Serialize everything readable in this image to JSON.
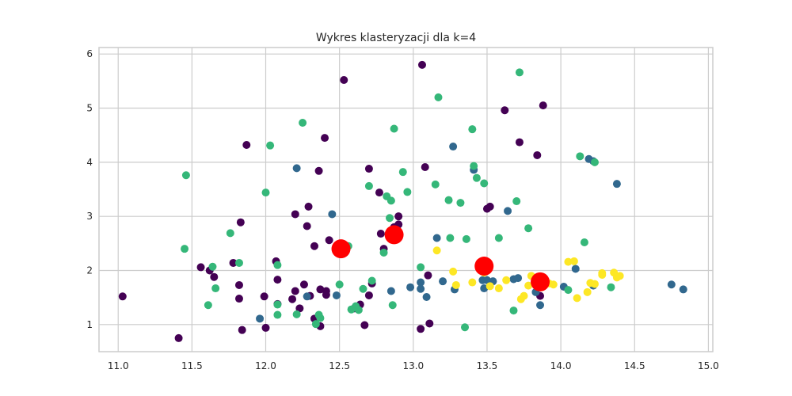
{
  "chart_data": {
    "type": "scatter",
    "title": "Wykres klasteryzacji dla k=4",
    "xlabel": "",
    "ylabel": "",
    "xlim": [
      10.87,
      15.03
    ],
    "ylim": [
      0.5,
      6.12
    ],
    "grid": true,
    "legend": "none",
    "x_ticks": [
      "11.0",
      "11.5",
      "12.0",
      "12.5",
      "13.0",
      "13.5",
      "14.0",
      "14.5",
      "15.0"
    ],
    "x_tick_values": [
      11.0,
      11.5,
      12.0,
      12.5,
      13.0,
      13.5,
      14.0,
      14.5,
      15.0
    ],
    "y_ticks": [
      "1",
      "2",
      "3",
      "4",
      "5",
      "6"
    ],
    "y_tick_values": [
      1,
      2,
      3,
      4,
      5,
      6
    ],
    "colors": {
      "cluster_0": "#440154",
      "cluster_1": "#31688e",
      "cluster_2": "#35b779",
      "cluster_3": "#fde725",
      "centroid": "#ff0000"
    },
    "series": [
      {
        "color_key": "cluster_0",
        "x": [
          11.03,
          11.41,
          11.56,
          11.62,
          11.65,
          11.78,
          11.82,
          11.82,
          11.83,
          11.84,
          11.87,
          11.99,
          12.0,
          12.07,
          12.08,
          12.08,
          12.2,
          12.18,
          12.2,
          12.23,
          12.26,
          12.28,
          12.29,
          12.3,
          12.33,
          12.33,
          12.36,
          12.37,
          12.37,
          12.4,
          12.41,
          12.43,
          12.41,
          12.53,
          12.6,
          12.64,
          12.67,
          12.7,
          12.7,
          12.72,
          12.77,
          12.78,
          12.8,
          12.87,
          12.9,
          12.9,
          13.05,
          13.06,
          13.08,
          13.1,
          13.11,
          13.5,
          13.52,
          13.62,
          13.72,
          13.84,
          13.86,
          13.86,
          13.88
        ],
        "y": [
          1.52,
          0.75,
          2.06,
          2.0,
          1.88,
          2.14,
          1.73,
          1.48,
          2.89,
          0.9,
          4.32,
          1.52,
          0.94,
          2.17,
          1.38,
          1.83,
          3.04,
          1.47,
          1.62,
          1.3,
          1.74,
          2.82,
          3.18,
          1.53,
          1.11,
          2.45,
          3.84,
          0.97,
          1.65,
          4.45,
          1.62,
          2.56,
          1.55,
          5.52,
          1.3,
          1.37,
          0.99,
          3.88,
          1.54,
          1.76,
          3.44,
          2.68,
          2.4,
          2.8,
          3.0,
          2.85,
          0.92,
          5.8,
          3.91,
          1.91,
          1.02,
          3.14,
          3.18,
          4.96,
          4.37,
          4.13,
          1.53,
          1.86,
          5.05
        ]
      },
      {
        "color_key": "cluster_1",
        "x": [
          11.96,
          12.21,
          12.28,
          12.45,
          12.48,
          12.85,
          12.98,
          13.05,
          13.05,
          13.09,
          13.16,
          13.2,
          13.27,
          13.28,
          13.41,
          13.47,
          13.48,
          13.5,
          13.54,
          13.64,
          13.68,
          13.71,
          13.83,
          13.86,
          13.87,
          14.02,
          14.1,
          14.19,
          14.22,
          14.22,
          14.38,
          14.75,
          14.83
        ],
        "y": [
          1.11,
          3.89,
          1.52,
          3.04,
          1.54,
          1.62,
          1.69,
          1.78,
          1.66,
          1.51,
          2.6,
          1.8,
          4.29,
          1.65,
          3.86,
          1.82,
          1.67,
          1.82,
          1.8,
          3.1,
          1.84,
          1.86,
          1.6,
          1.36,
          1.85,
          1.7,
          2.03,
          4.06,
          4.02,
          1.72,
          3.6,
          1.74,
          1.65
        ]
      },
      {
        "color_key": "cluster_2",
        "x": [
          11.45,
          11.46,
          11.61,
          11.64,
          11.66,
          11.76,
          11.82,
          12.0,
          12.03,
          12.08,
          12.08,
          12.08,
          12.21,
          12.25,
          12.34,
          12.36,
          12.37,
          12.5,
          12.56,
          12.58,
          12.61,
          12.63,
          12.66,
          12.7,
          12.72,
          12.8,
          12.82,
          12.84,
          12.85,
          12.86,
          12.87,
          12.93,
          12.96,
          13.05,
          13.15,
          13.17,
          13.24,
          13.25,
          13.32,
          13.35,
          13.36,
          13.4,
          13.41,
          13.43,
          13.48,
          13.58,
          13.68,
          13.7,
          13.72,
          13.78,
          14.05,
          14.13,
          14.16,
          14.23,
          14.34
        ],
        "y": [
          2.4,
          3.76,
          1.36,
          2.07,
          1.67,
          2.69,
          2.14,
          3.44,
          4.31,
          2.1,
          1.37,
          1.18,
          1.19,
          4.73,
          1.01,
          1.18,
          1.12,
          1.74,
          2.45,
          1.28,
          1.34,
          1.27,
          1.66,
          3.56,
          1.81,
          2.33,
          3.37,
          2.97,
          3.29,
          1.36,
          4.62,
          3.82,
          3.45,
          2.06,
          3.59,
          5.2,
          3.3,
          2.6,
          3.25,
          0.95,
          2.58,
          4.61,
          3.93,
          3.71,
          3.61,
          2.6,
          1.26,
          3.28,
          5.66,
          2.78,
          1.64,
          4.11,
          2.52,
          4.0,
          1.69
        ]
      },
      {
        "color_key": "cluster_3",
        "x": [
          13.16,
          13.27,
          13.29,
          13.4,
          13.48,
          13.52,
          13.58,
          13.63,
          13.73,
          13.75,
          13.78,
          13.8,
          13.92,
          13.95,
          14.05,
          14.09,
          14.11,
          14.18,
          14.2,
          14.23,
          14.28,
          14.36,
          14.38,
          14.4,
          14.28
        ],
        "y": [
          2.37,
          1.98,
          1.73,
          1.78,
          1.96,
          1.71,
          1.67,
          1.82,
          1.47,
          1.53,
          1.72,
          1.9,
          1.76,
          1.74,
          2.16,
          2.17,
          1.49,
          1.6,
          1.77,
          1.75,
          1.92,
          1.96,
          1.87,
          1.9,
          1.95
        ]
      },
      {
        "color_key": "centroid",
        "x": [
          12.51,
          12.87,
          13.48,
          13.86
        ],
        "y": [
          2.4,
          2.66,
          2.08,
          1.79
        ]
      }
    ]
  }
}
